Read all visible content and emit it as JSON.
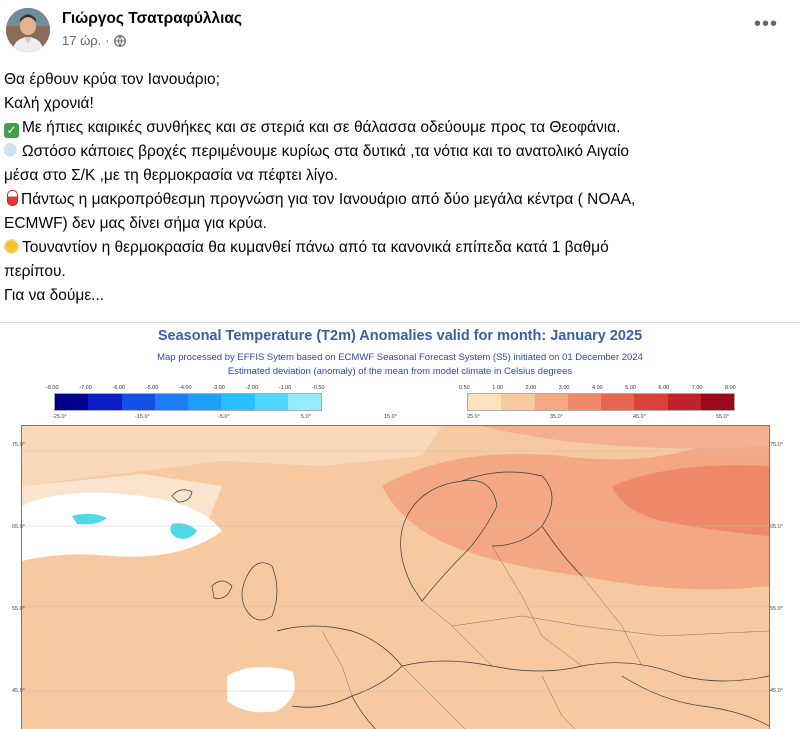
{
  "post": {
    "author": "Γιώργος Τσατραφύλλιας",
    "time": "17 ώρ.",
    "separator": "·",
    "privacy_icon": "globe-icon",
    "more_label": "•••",
    "lines": [
      {
        "emoji": "",
        "text": "Θα έρθουν κρύα τον Ιανουάριο;"
      },
      {
        "emoji": "",
        "text": "Καλή χρονιά!"
      },
      {
        "emoji": "check-mark-icon",
        "text": "Με ήπιες καιρικές συνθήκες και σε στεριά και σε θάλασσα οδεύουμε προς τα Θεοφάνια."
      },
      {
        "emoji": "rain-cloud-icon",
        "text": "Ωστόσο κάποιες βροχές περιμένουμε κυρίως στα δυτικά ,τα νότια και το ανατολικό Αιγαίο"
      },
      {
        "emoji": "",
        "text": "μέσα στο Σ/Κ ,με τη θερμοκρασία να πέφτει λίγο."
      },
      {
        "emoji": "thermometer-icon",
        "text": "Πάντως η μακροπρόθεσμη  προγνώση  για τον Ιανουάριο από δύο μεγάλα κέντρα ( NOAA,"
      },
      {
        "emoji": "",
        "text": "ECMWF)  δεν μας δίνει σήμα για κρύα."
      },
      {
        "emoji": "sun-icon",
        "text": "Τουναντίον  η θερμοκρασία θα κυμανθεί πάνω από τα κανονικά επίπεδα κατά 1 βαθμό"
      },
      {
        "emoji": "",
        "text": "περίπου."
      },
      {
        "emoji": "",
        "text": "Για να δούμε..."
      }
    ]
  },
  "map": {
    "title": "Seasonal Temperature (T2m) Anomalies valid for month: January 2025",
    "subtitle1": "Map processed by EFFIS Sytem based on ECMWF Seasonal Forecast System (S5) initiated on 01 December 2024",
    "subtitle2": "Estimated deviation (anomaly) of the mean from model climate in Celsius degrees",
    "negative_scale": {
      "labels": [
        "-8.00",
        "-7.00",
        "-6.00",
        "-5.00",
        "-4.00",
        "-3.00",
        "-2.00",
        "-1.00",
        "-0.50"
      ],
      "colors": [
        "#00008b",
        "#0a1ec8",
        "#1450e6",
        "#1e7cf5",
        "#1ea0fa",
        "#28c0ff",
        "#50d8ff",
        "#96ecff"
      ]
    },
    "positive_scale": {
      "labels": [
        "0.50",
        "1.00",
        "2.00",
        "3.00",
        "4.00",
        "5.00",
        "6.00",
        "7.00",
        "8.00"
      ],
      "colors": [
        "#fde2be",
        "#f9c9a0",
        "#f5a982",
        "#f08a6a",
        "#e86552",
        "#d94238",
        "#c0222a",
        "#9a0a18"
      ]
    },
    "top_axis": [
      "-25.0°",
      "-15.0°",
      "-5.0°",
      "5.0°",
      "15.0°",
      "25.0°",
      "35.0°",
      "45.0°",
      "55.0°"
    ],
    "left_axis": [
      "75.0°",
      "65.0°",
      "55.0°",
      "45.0°"
    ],
    "right_axis": [
      "75.0°",
      "65.0°",
      "55.0°",
      "45.0°"
    ],
    "colors": {
      "base": "#f6c9a1",
      "light": "#fbe1c8",
      "neutral": "#ffffff",
      "warm": "#f3a783",
      "warmer": "#ee8a6a",
      "cold": "#4fd8e6"
    }
  }
}
